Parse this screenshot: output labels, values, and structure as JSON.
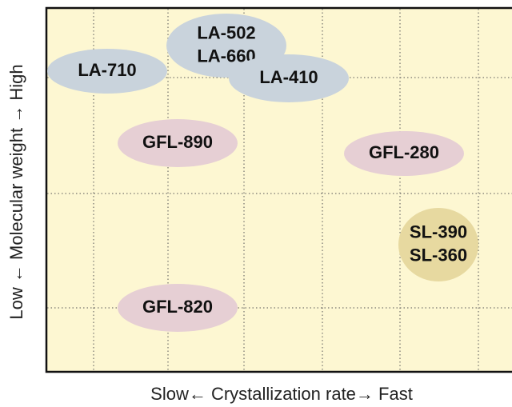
{
  "axes": {
    "y_label": "Low ← Molecular weight → High",
    "x_label": "Slow←  Crystallization rate→  Fast"
  },
  "nodes": [
    {
      "lines": [
        "LA-710"
      ]
    },
    {
      "lines": [
        "LA-502",
        "LA-660"
      ]
    },
    {
      "lines": [
        "LA-410"
      ]
    },
    {
      "lines": [
        "GFL-890"
      ]
    },
    {
      "lines": [
        "GFL-280"
      ]
    },
    {
      "lines": [
        "SL-390",
        "SL-360"
      ]
    },
    {
      "lines": [
        "GFL-820"
      ]
    }
  ]
}
